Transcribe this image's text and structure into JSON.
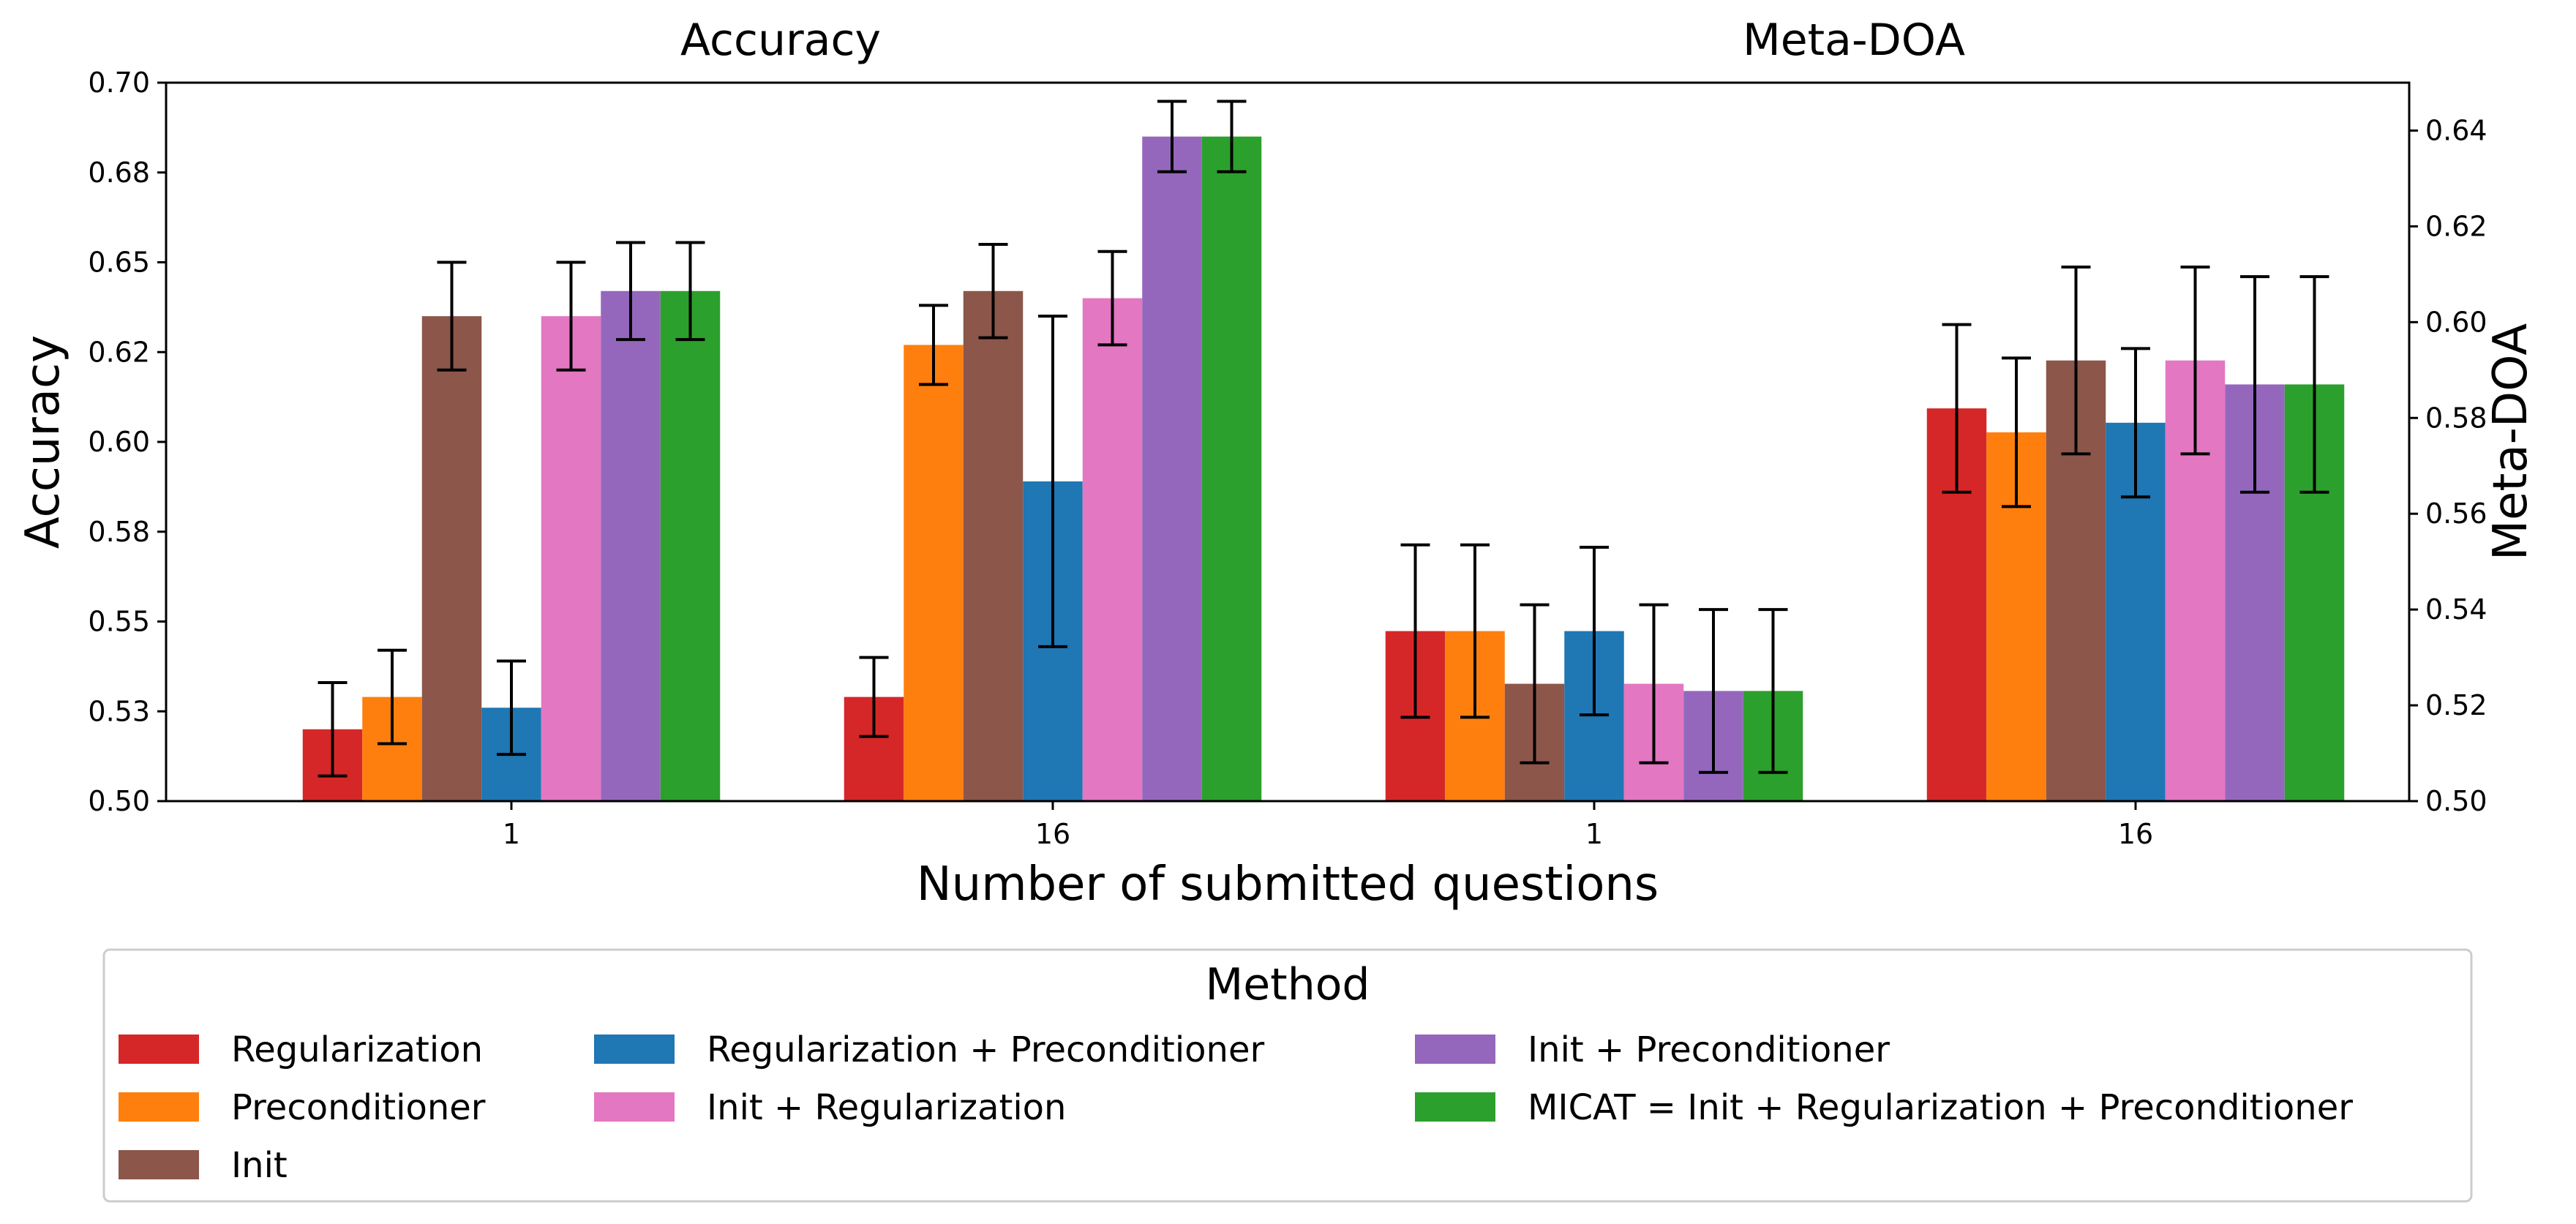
{
  "chart_data": {
    "type": "bar",
    "xlabel": "Number of submitted questions",
    "legend": {
      "title": "Method",
      "placement": "bottom"
    },
    "series": [
      {
        "name": "Regularization",
        "color": "#d62728"
      },
      {
        "name": "Preconditioner",
        "color": "#ff7f0e"
      },
      {
        "name": "Init",
        "color": "#8c564b"
      },
      {
        "name": "Regularization + Preconditioner",
        "color": "#1f77b4"
      },
      {
        "name": "Init + Regularization",
        "color": "#e377c2"
      },
      {
        "name": "Init + Preconditioner",
        "color": "#9467bd"
      },
      {
        "name": "MICAT = Init + Regularization + Preconditioner",
        "color": "#2ca02c"
      }
    ],
    "panels": [
      {
        "title": "Accuracy",
        "ylabel": "Accuracy",
        "y_axis_side": "left",
        "ylim": [
          0.5,
          0.7
        ],
        "yticks": [
          0.5,
          0.525,
          0.55,
          0.575,
          0.6,
          0.625,
          0.65,
          0.675,
          0.7
        ],
        "ytick_labels": [
          "0.50",
          "0.53",
          "0.55",
          "0.58",
          "0.60",
          "0.62",
          "0.65",
          "0.68",
          "0.70"
        ],
        "categories": [
          "1",
          "16"
        ],
        "values": [
          [
            0.52,
            0.529
          ],
          [
            0.529,
            0.627
          ],
          [
            0.635,
            0.642
          ],
          [
            0.526,
            0.589
          ],
          [
            0.635,
            0.64
          ],
          [
            0.642,
            0.685
          ],
          [
            0.642,
            0.685
          ]
        ],
        "errors": [
          [
            0.013,
            0.011
          ],
          [
            0.013,
            0.011
          ],
          [
            0.015,
            0.013
          ],
          [
            0.013,
            0.046
          ],
          [
            0.015,
            0.013
          ],
          [
            0.0135,
            0.0098
          ],
          [
            0.0135,
            0.0098
          ]
        ]
      },
      {
        "title": "Meta-DOA",
        "ylabel": "Meta-DOA",
        "y_axis_side": "right",
        "ylim": [
          0.5,
          0.65
        ],
        "yticks": [
          0.5,
          0.52,
          0.54,
          0.56,
          0.58,
          0.6,
          0.62,
          0.64
        ],
        "ytick_labels": [
          "0.50",
          "0.52",
          "0.54",
          "0.56",
          "0.58",
          "0.60",
          "0.62",
          "0.64"
        ],
        "categories": [
          "1",
          "16"
        ],
        "values": [
          [
            0.5355,
            0.582
          ],
          [
            0.5355,
            0.577
          ],
          [
            0.5245,
            0.592
          ],
          [
            0.5355,
            0.579
          ],
          [
            0.5245,
            0.592
          ],
          [
            0.523,
            0.587
          ],
          [
            0.523,
            0.587
          ]
        ],
        "errors": [
          [
            0.018,
            0.0175
          ],
          [
            0.018,
            0.0155
          ],
          [
            0.0165,
            0.0195
          ],
          [
            0.0175,
            0.0155
          ],
          [
            0.0165,
            0.0195
          ],
          [
            0.017,
            0.0225
          ],
          [
            0.017,
            0.0225
          ]
        ]
      }
    ]
  }
}
